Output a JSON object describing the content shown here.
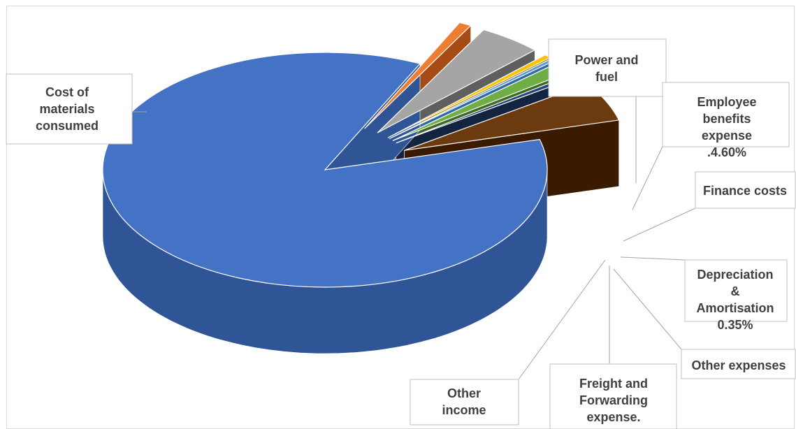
{
  "chart_data": {
    "type": "pie",
    "style": "3d-exploded",
    "title": "",
    "slices": [
      {
        "label_lines": [
          "Cost of",
          "materials",
          "consumed"
        ],
        "value": 86.2,
        "value_label": "",
        "color": "#4472c4",
        "side_color": "#2f5597"
      },
      {
        "label_lines": [
          "Power and",
          "fuel"
        ],
        "value": 0.9,
        "value_label": "",
        "color": "#ed7d31",
        "side_color": "#a64b16"
      },
      {
        "label_lines": [
          "Employee",
          "benefits",
          "expense",
          ".4.60%"
        ],
        "value": 4.6,
        "value_label": "4.60%",
        "color": "#a5a5a5",
        "side_color": "#5f5f5f"
      },
      {
        "label_lines": [
          "Finance costs"
        ],
        "value": 0.5,
        "value_label": "",
        "color": "#ffc000",
        "side_color": "#9a7400"
      },
      {
        "label_lines": [
          "Depreciation",
          "&",
          "Amortisation",
          "0.35%"
        ],
        "value": 0.35,
        "value_label": "0.35%",
        "color": "#5b9bd5",
        "side_color": "#2e6aa3"
      },
      {
        "label_lines": [
          "Other expenses"
        ],
        "value": 1.5,
        "value_label": "",
        "color": "#70ad47",
        "side_color": "#3f6a23"
      },
      {
        "label_lines": [
          "Freight and",
          "Forwarding",
          "expense."
        ],
        "value": 0.5,
        "value_label": "",
        "color": "#264478",
        "side_color": "#132440"
      },
      {
        "label_lines": [
          "Other",
          "income"
        ],
        "value": 5.45,
        "value_label": "",
        "color": "#6b3a0e",
        "side_color": "#3b1b00"
      }
    ]
  }
}
